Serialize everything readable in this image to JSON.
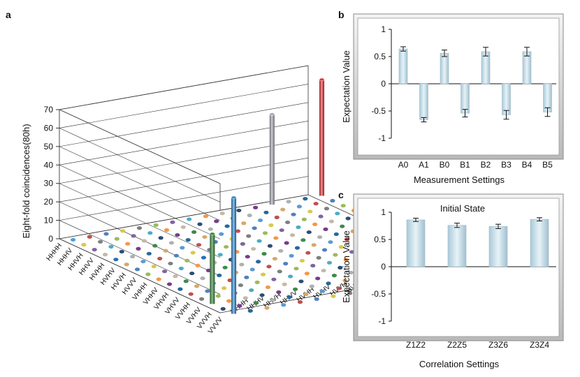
{
  "chart_data": [
    {
      "panel": "a",
      "type": "bar3d",
      "ylabel": "Eight-fold coincidences(80h)",
      "zlim": [
        0,
        70
      ],
      "zticks": [
        0,
        10,
        20,
        30,
        40,
        50,
        60,
        70
      ],
      "row_labels": [
        "HHHH",
        "HHHV",
        "HHVH",
        "HHVV",
        "HVHH",
        "HVHV",
        "HVVH",
        "HVVV",
        "VHHH",
        "VHHV",
        "VHVH",
        "VHVV",
        "VVHH",
        "VVHV",
        "VVVH",
        "VVVV"
      ],
      "col_labels": [
        "HHHH",
        "HHHV",
        "HHVH",
        "HHVV",
        "HVHH",
        "HVHV",
        "HVVH",
        "HVVV",
        "VHHH",
        "VHHV",
        "VHVH",
        "VHVV",
        "VVHH",
        "VVHV",
        "VVVH",
        "VVVV"
      ],
      "bars": [
        {
          "row": 0,
          "col": 0,
          "value": 2,
          "color": "#4aa3df"
        },
        {
          "row": 0,
          "col": 12,
          "value": 49,
          "color": "#a9adb8"
        },
        {
          "row": 0,
          "col": 15,
          "value": 63,
          "color": "#e8353a"
        },
        {
          "row": 15,
          "col": 0,
          "value": 63,
          "color": "#2f8fd6"
        },
        {
          "row": 13,
          "col": 0,
          "value": 38,
          "color": "#3b8a3e"
        },
        {
          "row": 4,
          "col": 0,
          "value": 2,
          "color": "#2a6fb3"
        },
        {
          "row": 6,
          "col": 4,
          "value": 3,
          "color": "#2a6fb3"
        }
      ],
      "cell_colors": [
        "#5b9bd5",
        "#c0504d",
        "#4f81bd",
        "#d9c84a",
        "#7f7f7f",
        "#9bbb59",
        "#8064a2",
        "#4bacc6",
        "#f79646",
        "#c6b8a8",
        "#2c4d75",
        "#7a3b8a",
        "#3d8a4a",
        "#b0b0b0",
        "#26689e",
        "#d6a86a"
      ]
    },
    {
      "panel": "b",
      "type": "bar",
      "categories": [
        "A0",
        "A1",
        "B0",
        "B1",
        "B2",
        "B3",
        "B4",
        "B5"
      ],
      "values": [
        0.64,
        -0.66,
        0.56,
        -0.54,
        0.59,
        -0.57,
        0.59,
        -0.52
      ],
      "errors": [
        0.04,
        0.04,
        0.06,
        0.07,
        0.08,
        0.08,
        0.08,
        0.08
      ],
      "xlabel": "Measurement Settings",
      "ylabel": "Expectation Value",
      "ylim": [
        -1,
        1
      ],
      "yticks": [
        1,
        0.5,
        0,
        -0.5,
        -1
      ],
      "ytick_labels": [
        "1",
        "0.5",
        "0",
        "-0.5",
        "-1"
      ]
    },
    {
      "panel": "c",
      "type": "bar",
      "title": "Initial State",
      "categories": [
        "Z1Z2",
        "Z2Z5",
        "Z3Z6",
        "Z3Z4"
      ],
      "values": [
        0.86,
        0.76,
        0.74,
        0.87
      ],
      "errors": [
        0.03,
        0.04,
        0.04,
        0.03
      ],
      "xlabel": "Correlation Settings",
      "ylabel": "Expectation Value",
      "ylim": [
        -1,
        1
      ],
      "yticks": [
        1,
        0.5,
        0,
        -0.5,
        -1
      ],
      "ytick_labels": [
        "1",
        "0.5",
        "0",
        "-0.5",
        "-1"
      ]
    }
  ],
  "panel_labels": {
    "a": "a",
    "b": "b",
    "c": "c"
  }
}
